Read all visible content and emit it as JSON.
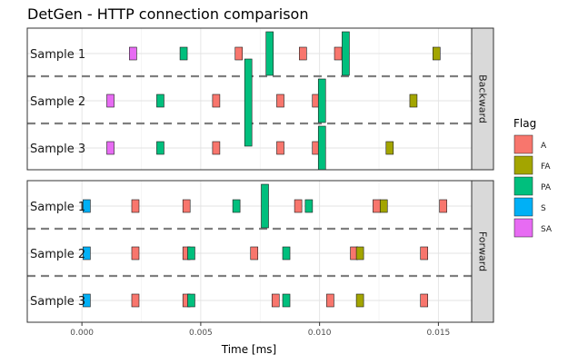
{
  "chart_data": {
    "type": "timeline",
    "title": "DetGen - HTTP connection comparison",
    "xlabel": "Time [ms]",
    "x_ticks": [
      0.0,
      0.005,
      0.01,
      0.015
    ],
    "x_tick_labels": [
      "0.000",
      "0.005",
      "0.010",
      "0.015"
    ],
    "xlim": [
      -0.0023,
      0.0164
    ],
    "legend": {
      "title": "Flag",
      "position": "right",
      "entries": [
        {
          "name": "A",
          "color": "#F8766D"
        },
        {
          "name": "FA",
          "color": "#A3A500"
        },
        {
          "name": "PA",
          "color": "#00BF7D"
        },
        {
          "name": "S",
          "color": "#00B0F6"
        },
        {
          "name": "SA",
          "color": "#E76BF3"
        }
      ]
    },
    "facets": [
      {
        "name": "Backward",
        "rows": [
          {
            "label": "Sample 1",
            "packets": [
              {
                "t": 0.00215,
                "flag": "SA",
                "size": "small"
              },
              {
                "t": 0.00428,
                "flag": "PA",
                "size": "small"
              },
              {
                "t": 0.0066,
                "flag": "A",
                "size": "small"
              },
              {
                "t": 0.0079,
                "flag": "PA",
                "size": "large"
              },
              {
                "t": 0.0093,
                "flag": "A",
                "size": "small"
              },
              {
                "t": 0.01078,
                "flag": "A",
                "size": "small"
              },
              {
                "t": 0.0111,
                "flag": "PA",
                "size": "large"
              },
              {
                "t": 0.01492,
                "flag": "FA",
                "size": "small"
              }
            ]
          },
          {
            "label": "Sample 2",
            "packets": [
              {
                "t": 0.0012,
                "flag": "SA",
                "size": "small"
              },
              {
                "t": 0.0033,
                "flag": "PA",
                "size": "small"
              },
              {
                "t": 0.00565,
                "flag": "A",
                "size": "small"
              },
              {
                "t": 0.007,
                "flag": "PA",
                "size": "tall"
              },
              {
                "t": 0.00835,
                "flag": "A",
                "size": "small"
              },
              {
                "t": 0.00985,
                "flag": "A",
                "size": "small"
              },
              {
                "t": 0.0101,
                "flag": "PA",
                "size": "large"
              },
              {
                "t": 0.01395,
                "flag": "FA",
                "size": "small"
              }
            ]
          },
          {
            "label": "Sample 3",
            "packets": [
              {
                "t": 0.0012,
                "flag": "SA",
                "size": "small"
              },
              {
                "t": 0.0033,
                "flag": "PA",
                "size": "small"
              },
              {
                "t": 0.00565,
                "flag": "A",
                "size": "small"
              },
              {
                "t": 0.00985,
                "flag": "A",
                "size": "small"
              },
              {
                "t": 0.00835,
                "flag": "A",
                "size": "small"
              },
              {
                "t": 0.0101,
                "flag": "PA",
                "size": "large"
              },
              {
                "t": 0.01295,
                "flag": "FA",
                "size": "small"
              }
            ]
          }
        ]
      },
      {
        "name": "Forward",
        "rows": [
          {
            "label": "Sample 1",
            "packets": [
              {
                "t": 0.0002,
                "flag": "S",
                "size": "small"
              },
              {
                "t": 0.00225,
                "flag": "A",
                "size": "small"
              },
              {
                "t": 0.0044,
                "flag": "A",
                "size": "small"
              },
              {
                "t": 0.0065,
                "flag": "PA",
                "size": "small"
              },
              {
                "t": 0.0077,
                "flag": "PA",
                "size": "large"
              },
              {
                "t": 0.0091,
                "flag": "A",
                "size": "small"
              },
              {
                "t": 0.00955,
                "flag": "PA",
                "size": "small"
              },
              {
                "t": 0.0124,
                "flag": "A",
                "size": "small"
              },
              {
                "t": 0.0127,
                "flag": "FA",
                "size": "small"
              },
              {
                "t": 0.0152,
                "flag": "A",
                "size": "small"
              }
            ]
          },
          {
            "label": "Sample 2",
            "packets": [
              {
                "t": 0.0002,
                "flag": "S",
                "size": "small"
              },
              {
                "t": 0.00225,
                "flag": "A",
                "size": "small"
              },
              {
                "t": 0.0044,
                "flag": "A",
                "size": "small"
              },
              {
                "t": 0.0046,
                "flag": "PA",
                "size": "small"
              },
              {
                "t": 0.00725,
                "flag": "A",
                "size": "small"
              },
              {
                "t": 0.0086,
                "flag": "PA",
                "size": "small"
              },
              {
                "t": 0.01145,
                "flag": "A",
                "size": "small"
              },
              {
                "t": 0.0117,
                "flag": "FA",
                "size": "small"
              },
              {
                "t": 0.0144,
                "flag": "A",
                "size": "small"
              }
            ]
          },
          {
            "label": "Sample 3",
            "packets": [
              {
                "t": 0.0002,
                "flag": "S",
                "size": "small"
              },
              {
                "t": 0.00225,
                "flag": "A",
                "size": "small"
              },
              {
                "t": 0.0044,
                "flag": "A",
                "size": "small"
              },
              {
                "t": 0.0046,
                "flag": "PA",
                "size": "small"
              },
              {
                "t": 0.00815,
                "flag": "A",
                "size": "small"
              },
              {
                "t": 0.0086,
                "flag": "PA",
                "size": "small"
              },
              {
                "t": 0.01045,
                "flag": "A",
                "size": "small"
              },
              {
                "t": 0.0117,
                "flag": "FA",
                "size": "small"
              },
              {
                "t": 0.0144,
                "flag": "A",
                "size": "small"
              }
            ]
          }
        ]
      }
    ],
    "grid": true
  }
}
